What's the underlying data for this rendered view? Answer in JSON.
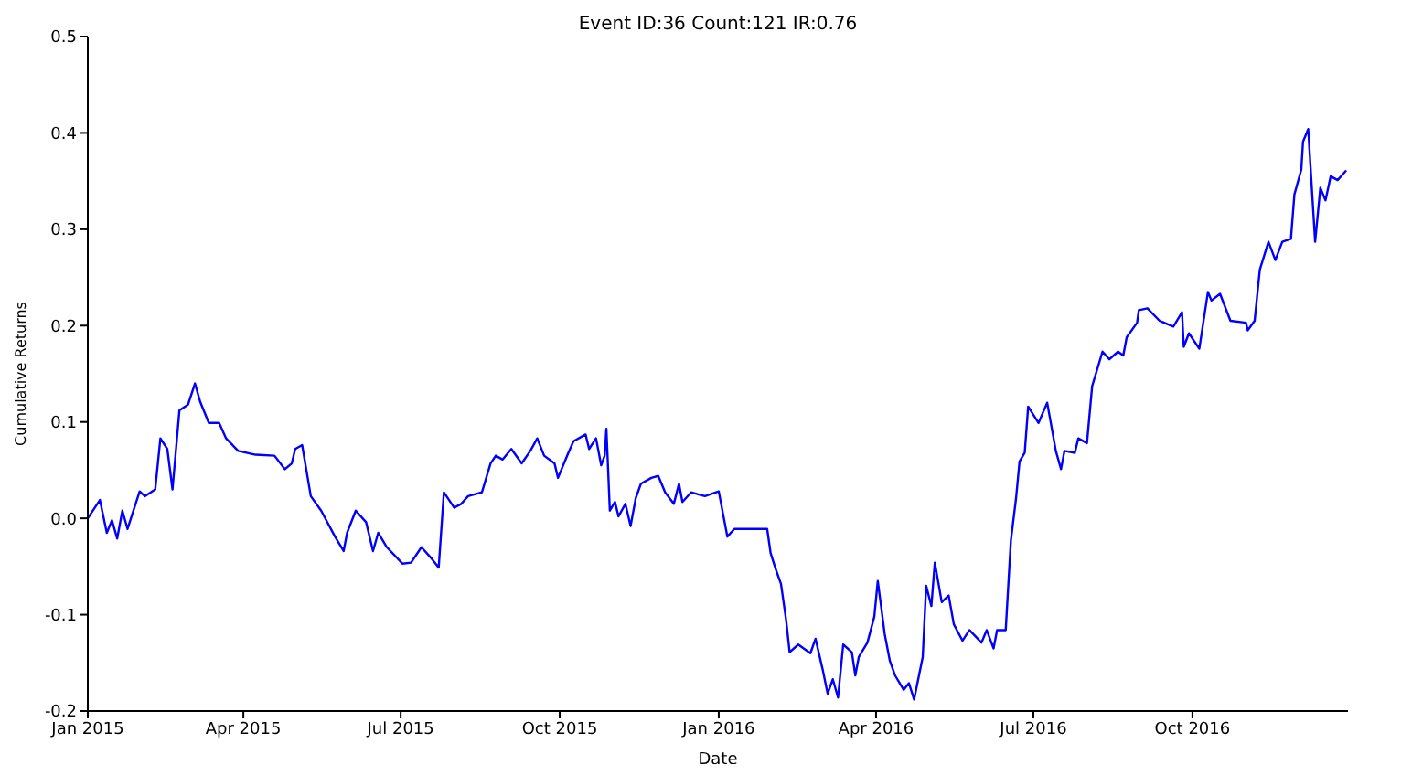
{
  "chart_data": {
    "type": "line",
    "title": "Event ID:36    Count:121    IR:0.76",
    "xlabel": "Date",
    "ylabel": "Cumulative Returns",
    "x": [
      "2015-01-01",
      "2015-01-08",
      "2015-01-12",
      "2015-01-15",
      "2015-01-18",
      "2015-01-21",
      "2015-01-24",
      "2015-01-31",
      "2015-02-03",
      "2015-02-09",
      "2015-02-12",
      "2015-02-16",
      "2015-02-19",
      "2015-02-23",
      "2015-02-28",
      "2015-03-04",
      "2015-03-07",
      "2015-03-12",
      "2015-03-18",
      "2015-03-22",
      "2015-03-29",
      "2015-04-08",
      "2015-04-19",
      "2015-04-25",
      "2015-04-29",
      "2015-05-01",
      "2015-05-05",
      "2015-05-10",
      "2015-05-16",
      "2015-05-24",
      "2015-05-29",
      "2015-05-31",
      "2015-06-05",
      "2015-06-11",
      "2015-06-15",
      "2015-06-18",
      "2015-06-23",
      "2015-07-02",
      "2015-07-07",
      "2015-07-13",
      "2015-07-19",
      "2015-07-23",
      "2015-07-26",
      "2015-08-01",
      "2015-08-05",
      "2015-08-09",
      "2015-08-17",
      "2015-08-22",
      "2015-08-25",
      "2015-08-29",
      "2015-09-03",
      "2015-09-09",
      "2015-09-14",
      "2015-09-18",
      "2015-09-22",
      "2015-09-28",
      "2015-09-30",
      "2015-10-06",
      "2015-10-09",
      "2015-10-16",
      "2015-10-18",
      "2015-10-22",
      "2015-10-25",
      "2015-10-27",
      "2015-10-28",
      "2015-10-30",
      "2015-11-02",
      "2015-11-04",
      "2015-11-08",
      "2015-11-11",
      "2015-11-14",
      "2015-11-17",
      "2015-11-23",
      "2015-11-27",
      "2015-12-01",
      "2015-12-06",
      "2015-12-09",
      "2015-12-11",
      "2015-12-16",
      "2015-12-24",
      "2016-01-01",
      "2016-01-06",
      "2016-01-10",
      "2016-01-29",
      "2016-01-31",
      "2016-02-03",
      "2016-02-06",
      "2016-02-09",
      "2016-02-11",
      "2016-02-16",
      "2016-02-23",
      "2016-02-26",
      "2016-03-01",
      "2016-03-04",
      "2016-03-07",
      "2016-03-10",
      "2016-03-13",
      "2016-03-18",
      "2016-03-20",
      "2016-03-22",
      "2016-03-27",
      "2016-03-31",
      "2016-04-02",
      "2016-04-06",
      "2016-04-09",
      "2016-04-12",
      "2016-04-17",
      "2016-04-20",
      "2016-04-23",
      "2016-04-28",
      "2016-04-30",
      "2016-05-03",
      "2016-05-05",
      "2016-05-09",
      "2016-05-13",
      "2016-05-16",
      "2016-05-21",
      "2016-05-25",
      "2016-06-01",
      "2016-06-04",
      "2016-06-08",
      "2016-06-10",
      "2016-06-15",
      "2016-06-18",
      "2016-06-21",
      "2016-06-23",
      "2016-06-26",
      "2016-06-28",
      "2016-07-04",
      "2016-07-09",
      "2016-07-14",
      "2016-07-17",
      "2016-07-19",
      "2016-07-25",
      "2016-07-27",
      "2016-08-01",
      "2016-08-04",
      "2016-08-10",
      "2016-08-14",
      "2016-08-19",
      "2016-08-22",
      "2016-08-24",
      "2016-08-30",
      "2016-08-31",
      "2016-09-05",
      "2016-09-12",
      "2016-09-20",
      "2016-09-25",
      "2016-09-26",
      "2016-09-29",
      "2016-10-05",
      "2016-10-10",
      "2016-10-12",
      "2016-10-17",
      "2016-10-23",
      "2016-11-01",
      "2016-11-02",
      "2016-11-06",
      "2016-11-09",
      "2016-11-14",
      "2016-11-18",
      "2016-11-22",
      "2016-11-27",
      "2016-11-29",
      "2016-12-03",
      "2016-12-04",
      "2016-12-07",
      "2016-12-11",
      "2016-12-14",
      "2016-12-17",
      "2016-12-20",
      "2016-12-24",
      "2016-12-29"
    ],
    "series": [
      {
        "color": "#0000ff",
        "values": [
          0.0,
          0.019,
          -0.015,
          -0.002,
          -0.021,
          0.008,
          -0.011,
          0.028,
          0.023,
          0.03,
          0.083,
          0.072,
          0.03,
          0.112,
          0.118,
          0.14,
          0.121,
          0.099,
          0.099,
          0.083,
          0.07,
          0.066,
          0.065,
          0.051,
          0.057,
          0.072,
          0.076,
          0.023,
          0.008,
          -0.019,
          -0.034,
          -0.015,
          0.008,
          -0.004,
          -0.034,
          -0.015,
          -0.03,
          -0.047,
          -0.046,
          -0.03,
          -0.042,
          -0.051,
          0.027,
          0.011,
          0.015,
          0.023,
          0.027,
          0.057,
          0.065,
          0.061,
          0.072,
          0.057,
          0.07,
          0.083,
          0.065,
          0.057,
          0.042,
          0.068,
          0.08,
          0.087,
          0.072,
          0.083,
          0.055,
          0.065,
          0.093,
          0.008,
          0.017,
          0.002,
          0.015,
          -0.008,
          0.021,
          0.036,
          0.042,
          0.044,
          0.027,
          0.015,
          0.036,
          0.017,
          0.027,
          0.023,
          0.028,
          -0.019,
          -0.011,
          -0.011,
          -0.036,
          -0.053,
          -0.068,
          -0.106,
          -0.139,
          -0.131,
          -0.14,
          -0.125,
          -0.156,
          -0.182,
          -0.167,
          -0.186,
          -0.131,
          -0.139,
          -0.163,
          -0.144,
          -0.129,
          -0.102,
          -0.065,
          -0.12,
          -0.148,
          -0.163,
          -0.178,
          -0.171,
          -0.188,
          -0.144,
          -0.07,
          -0.091,
          -0.046,
          -0.087,
          -0.08,
          -0.11,
          -0.127,
          -0.116,
          -0.129,
          -0.116,
          -0.135,
          -0.116,
          -0.116,
          -0.023,
          0.021,
          0.059,
          0.068,
          0.116,
          0.099,
          0.12,
          0.07,
          0.051,
          0.07,
          0.068,
          0.083,
          0.078,
          0.137,
          0.173,
          0.165,
          0.173,
          0.169,
          0.188,
          0.203,
          0.216,
          0.218,
          0.205,
          0.199,
          0.214,
          0.178,
          0.192,
          0.176,
          0.235,
          0.226,
          0.233,
          0.205,
          0.203,
          0.195,
          0.205,
          0.258,
          0.287,
          0.268,
          0.287,
          0.29,
          0.336,
          0.362,
          0.391,
          0.404,
          0.287,
          0.343,
          0.33,
          0.355,
          0.351,
          0.361
        ]
      }
    ],
    "xlim": [
      "2015-01-01",
      "2016-12-30"
    ],
    "xticks": [
      {
        "value": "2015-01-01",
        "label": "Jan 2015"
      },
      {
        "value": "2015-04-01",
        "label": "Apr 2015"
      },
      {
        "value": "2015-07-01",
        "label": "Jul 2015"
      },
      {
        "value": "2015-10-01",
        "label": "Oct 2015"
      },
      {
        "value": "2016-01-01",
        "label": "Jan 2016"
      },
      {
        "value": "2016-04-01",
        "label": "Apr 2016"
      },
      {
        "value": "2016-07-01",
        "label": "Jul 2016"
      },
      {
        "value": "2016-10-01",
        "label": "Oct 2016"
      }
    ],
    "ylim": [
      -0.2,
      0.5
    ],
    "yticks": [
      -0.2,
      -0.1,
      {
        "value": 0,
        "label": "0.0"
      },
      0.1,
      0.2,
      0.3,
      0.4,
      0.5
    ],
    "grid": false,
    "legend": false,
    "marker": "none",
    "line_style": "solid"
  }
}
